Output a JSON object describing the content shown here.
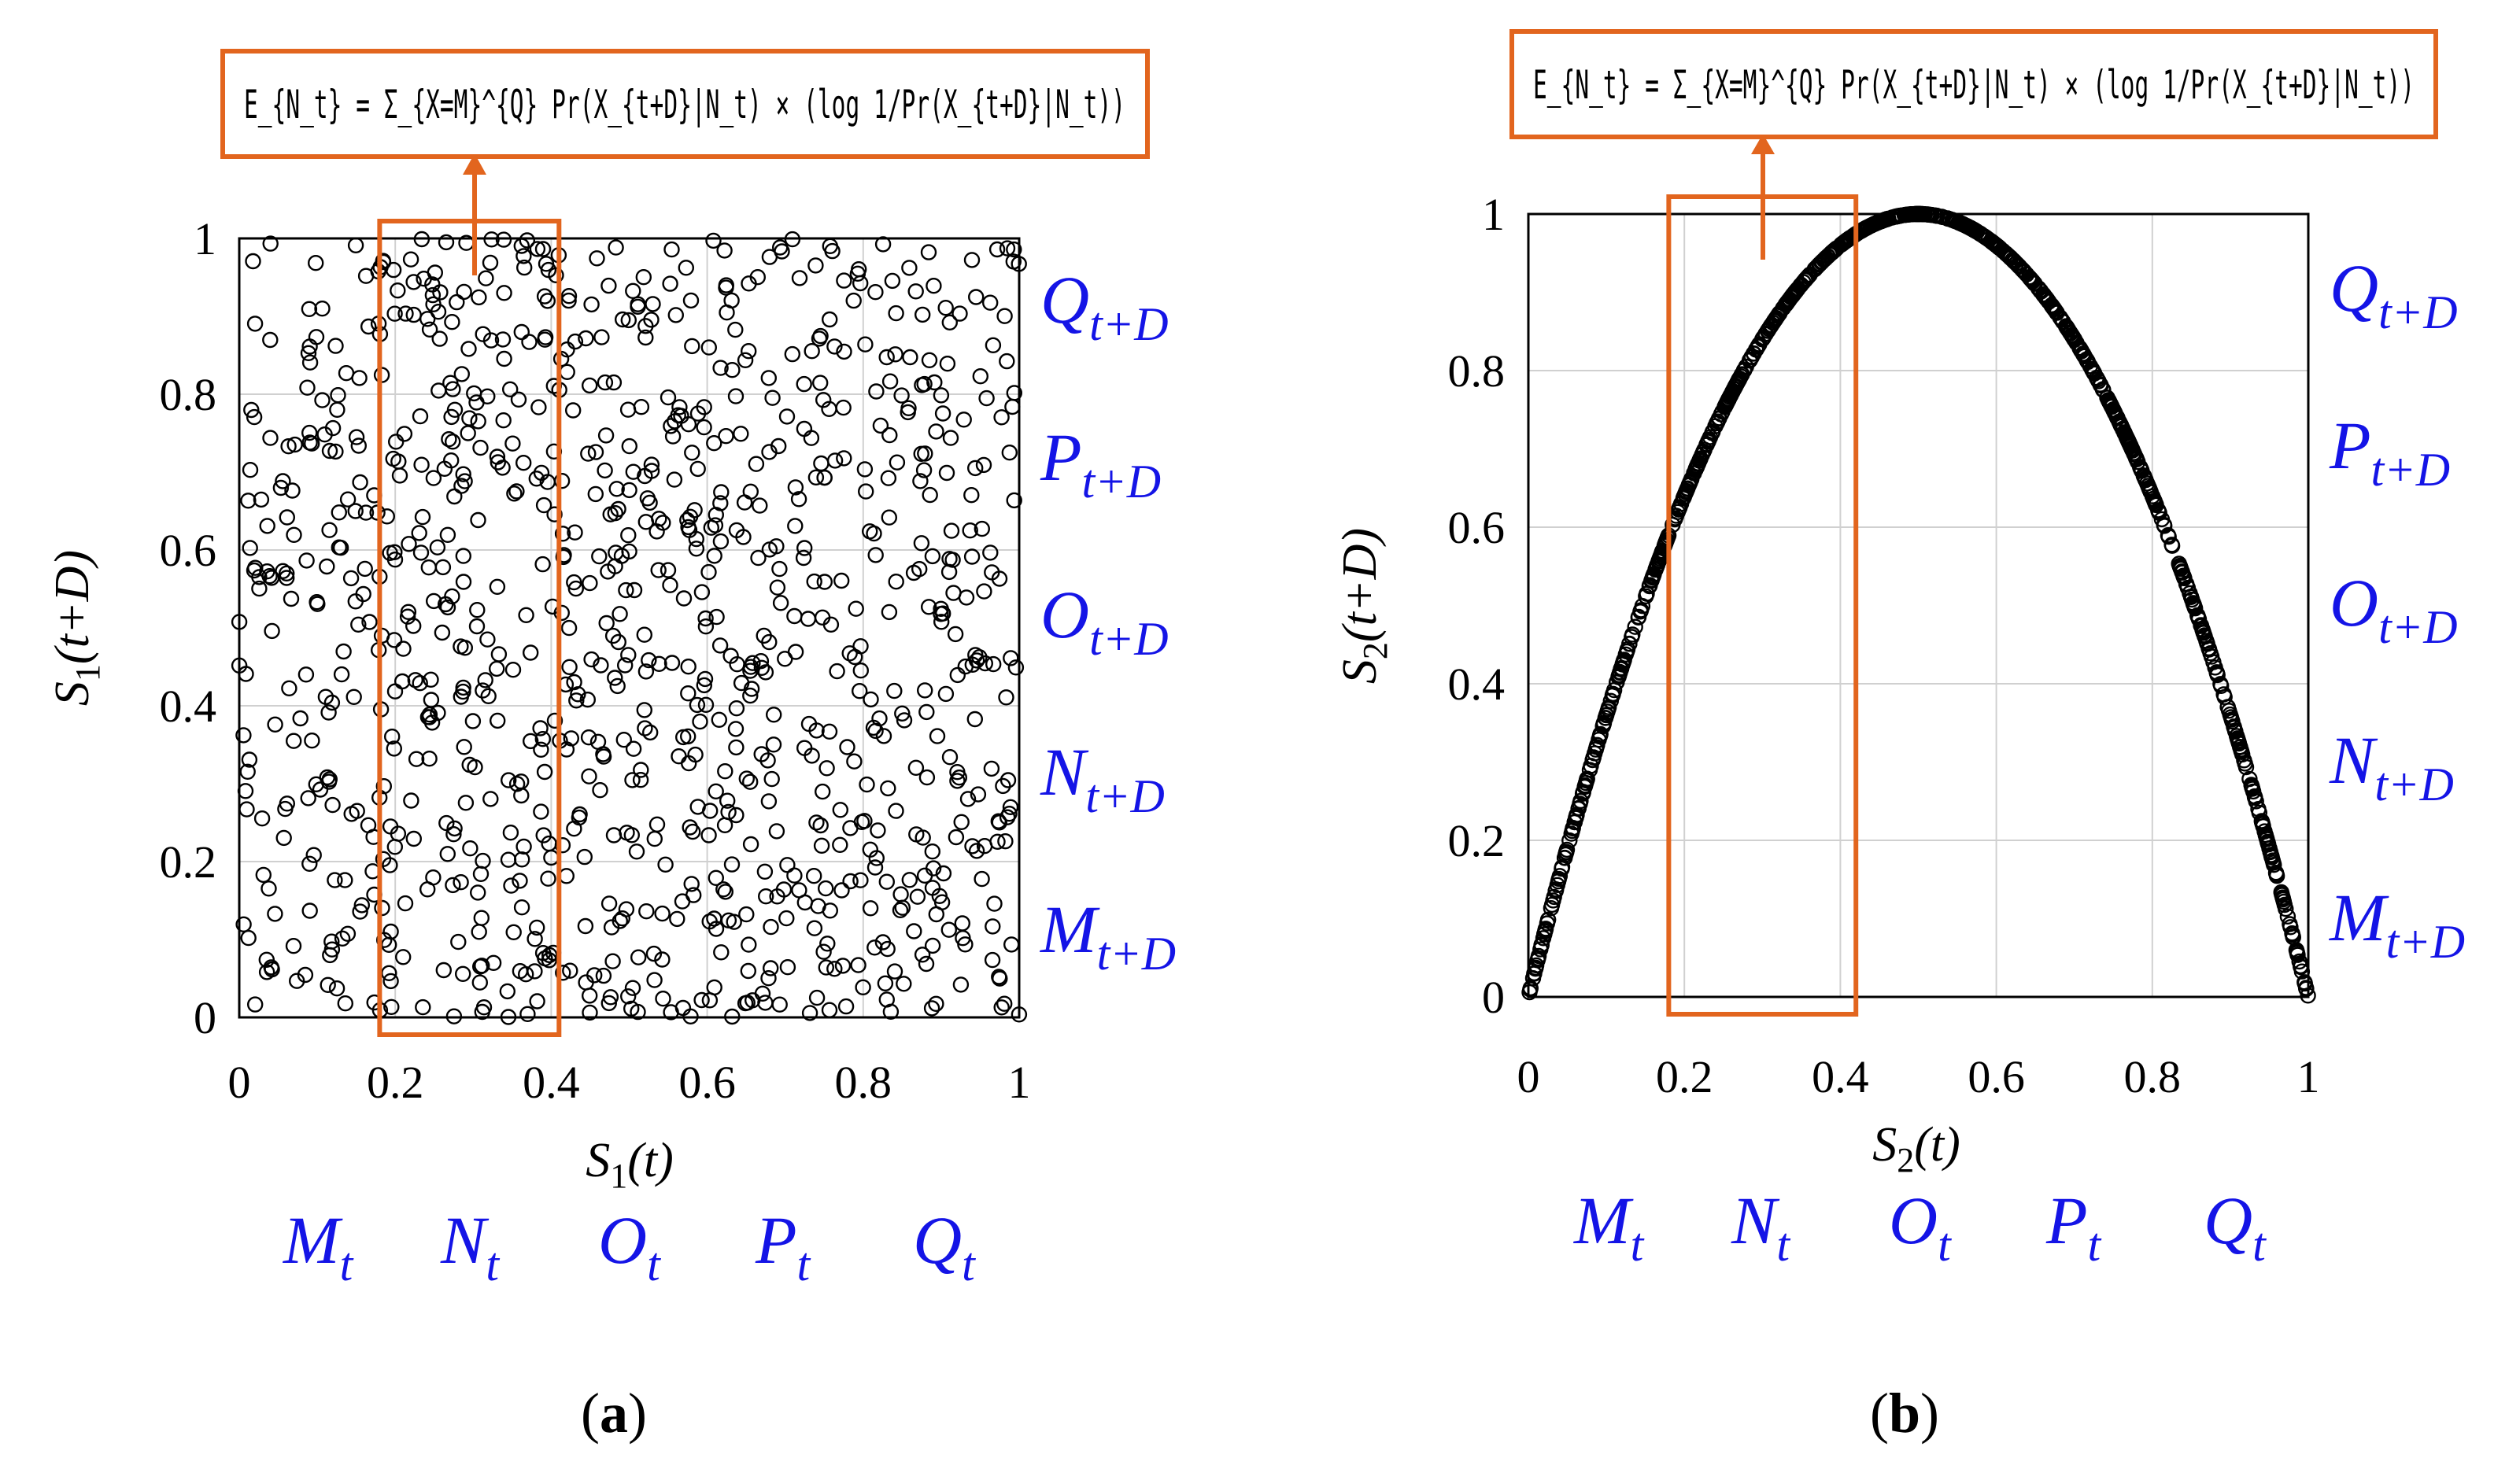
{
  "colors": {
    "highlight": "#e2651e",
    "state_label": "#1414e6",
    "points": "#000000",
    "grid": "#d0d0d0"
  },
  "chart_data": [
    {
      "id": "a",
      "type": "scatter",
      "caption_letter": "a",
      "xlabel_base": "S",
      "xlabel_sub": "1",
      "xlabel_suffix": "(t)",
      "ylabel_base": "S",
      "ylabel_sub": "1",
      "ylabel_suffix": "(t+D)",
      "xlim": [
        0,
        1
      ],
      "ylim": [
        0,
        1
      ],
      "x_ticks": [
        0,
        0.2,
        0.4,
        0.6,
        0.8,
        1
      ],
      "x_tick_labels": [
        "0",
        "0.2",
        "0.4",
        "0.6",
        "0.8",
        "1"
      ],
      "y_ticks": [
        0,
        0.2,
        0.4,
        0.6,
        0.8,
        1
      ],
      "y_tick_labels": [
        "0",
        "0.2",
        "0.4",
        "0.6",
        "0.8",
        "1"
      ],
      "grid": true,
      "marker": "open-circle",
      "n_points": 1000,
      "point_rule": "uniform random pairs x ~ U(0,1), y ~ U(0,1)",
      "highlight_range": [
        0.18,
        0.41
      ],
      "formula": "E_{N_t} = Σ_{X=M}^{Q} Pr(X_{t+D}|N_t) × (log 1/Pr(X_{t+D}|N_t))",
      "x_state_labels": [
        {
          "base": "M",
          "sub": "t"
        },
        {
          "base": "N",
          "sub": "t"
        },
        {
          "base": "O",
          "sub": "t"
        },
        {
          "base": "P",
          "sub": "t"
        },
        {
          "base": "Q",
          "sub": "t"
        }
      ],
      "y_state_labels": [
        {
          "base": "Q",
          "sub": "t+D"
        },
        {
          "base": "P",
          "sub": "t+D"
        },
        {
          "base": "O",
          "sub": "t+D"
        },
        {
          "base": "N",
          "sub": "t+D"
        },
        {
          "base": "M",
          "sub": "t+D"
        }
      ]
    },
    {
      "id": "b",
      "type": "scatter",
      "caption_letter": "b",
      "xlabel_base": "S",
      "xlabel_sub": "2",
      "xlabel_suffix": "(t)",
      "ylabel_base": "S",
      "ylabel_sub": "2",
      "ylabel_suffix": "(t+D)",
      "xlim": [
        0,
        1
      ],
      "ylim": [
        0,
        1
      ],
      "x_ticks": [
        0,
        0.2,
        0.4,
        0.6,
        0.8,
        1
      ],
      "x_tick_labels": [
        "0",
        "0.2",
        "0.4",
        "0.6",
        "0.8",
        "1"
      ],
      "y_ticks": [
        0,
        0.2,
        0.4,
        0.6,
        0.8,
        1
      ],
      "y_tick_labels": [
        "0",
        "0.2",
        "0.4",
        "0.6",
        "0.8",
        "1"
      ],
      "grid": true,
      "marker": "open-circle",
      "n_points": 1000,
      "point_rule": "logistic map pairs y = 4·x·(1−x)",
      "highlight_range": [
        0.18,
        0.42
      ],
      "formula": "E_{N_t} = Σ_{X=M}^{Q} Pr(X_{t+D}|N_t) × (log 1/Pr(X_{t+D}|N_t))",
      "x_state_labels": [
        {
          "base": "M",
          "sub": "t"
        },
        {
          "base": "N",
          "sub": "t"
        },
        {
          "base": "O",
          "sub": "t"
        },
        {
          "base": "P",
          "sub": "t"
        },
        {
          "base": "Q",
          "sub": "t"
        }
      ],
      "y_state_labels": [
        {
          "base": "Q",
          "sub": "t+D"
        },
        {
          "base": "P",
          "sub": "t+D"
        },
        {
          "base": "O",
          "sub": "t+D"
        },
        {
          "base": "N",
          "sub": "t+D"
        },
        {
          "base": "M",
          "sub": "t+D"
        }
      ]
    }
  ]
}
